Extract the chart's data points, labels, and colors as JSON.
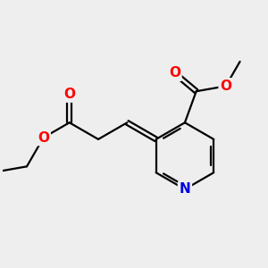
{
  "bg_color": "#eeeeee",
  "bond_color": "#000000",
  "bond_width": 1.6,
  "dbo": 0.018,
  "atom_colors": {
    "O": "#ff0000",
    "N": "#0000dd",
    "C": "#000000"
  },
  "font_size": 11,
  "figsize": [
    3.0,
    3.0
  ],
  "dpi": 100,
  "xlim": [
    0.0,
    3.0
  ],
  "ylim": [
    0.0,
    3.0
  ]
}
